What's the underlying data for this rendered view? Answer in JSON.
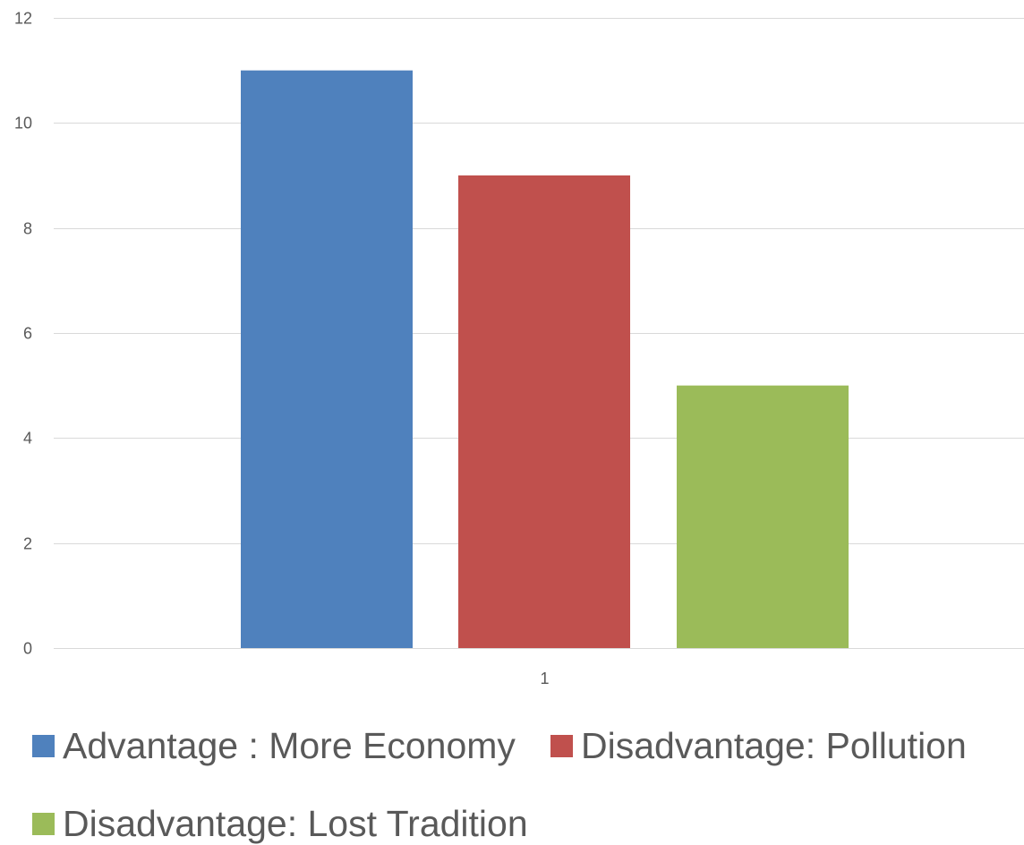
{
  "chart_data": {
    "type": "bar",
    "categories": [
      "1"
    ],
    "series": [
      {
        "name": "Advantage : More Economy",
        "values": [
          11
        ],
        "color": "#4F81BD"
      },
      {
        "name": "Disadvantage: Pollution",
        "values": [
          9
        ],
        "color": "#C0504D"
      },
      {
        "name": "Disadvantage: Lost Tradition",
        "values": [
          5
        ],
        "color": "#9BBB59"
      }
    ],
    "y_ticks": [
      "0",
      "2",
      "4",
      "6",
      "8",
      "10",
      "12"
    ],
    "ylim": [
      0,
      12
    ],
    "grid": true,
    "legend_position": "bottom"
  }
}
